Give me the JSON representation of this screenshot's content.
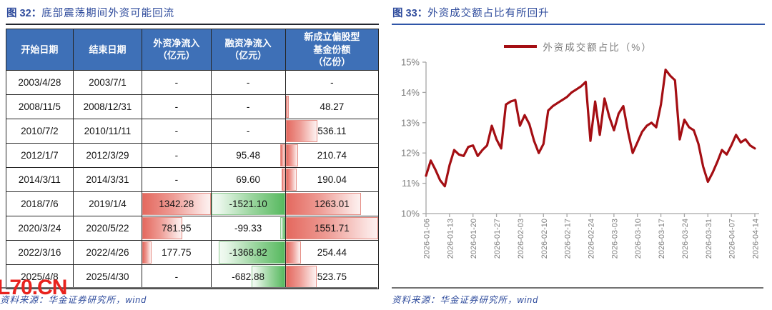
{
  "colors": {
    "accent_blue": "#2E4B9C",
    "table_header_blue": "#3E70B7",
    "line_red": "#A40E13",
    "bar_red": "#E4695F",
    "bar_green": "#57B95F",
    "watermark_red": "#E8231E",
    "axis_gray": "#7F7F7F"
  },
  "left_figure": {
    "label": "图 32：",
    "title": "底部震荡期间外资可能回流",
    "source": "资料来源：华金证券研究所，wind",
    "watermark": "L70.CN",
    "table": {
      "col_widths": [
        "18%",
        "18.5%",
        "18.5%",
        "20%",
        "25%"
      ],
      "headers": [
        "开始日期",
        "结束日期",
        "外资净流入\n（亿元）",
        "融资净流入\n（亿元）",
        "新成立偏股型\n基金份额\n（亿份）"
      ],
      "rows": [
        [
          "2003/4/28",
          "2003/7/1",
          "-",
          "-",
          "-"
        ],
        [
          "2008/11/5",
          "2008/12/31",
          "-",
          "-",
          "48.27"
        ],
        [
          "2010/7/2",
          "2010/11/11",
          "-",
          "-",
          "536.11"
        ],
        [
          "2012/1/7",
          "2012/3/29",
          "-",
          "95.48",
          "210.74"
        ],
        [
          "2014/3/11",
          "2014/3/31",
          "-",
          "69.60",
          "190.04"
        ],
        [
          "2018/7/6",
          "2019/1/4",
          "1342.28",
          "-1521.10",
          "1263.01"
        ],
        [
          "2020/3/24",
          "2020/5/22",
          "781.95",
          "-99.33",
          "1551.71"
        ],
        [
          "2022/3/16",
          "2022/4/26",
          "177.75",
          "-1368.82",
          "254.44"
        ],
        [
          "2025/4/8",
          "2025/4/30",
          "-",
          "-682.88",
          "523.75"
        ]
      ]
    }
  },
  "right_figure": {
    "label": "图 33：",
    "title": "外资成交额占比有所回升",
    "legend": "外资成交额占比（%）",
    "source": "资料来源：华金证券研究所，wind"
  },
  "chart_data": {
    "type": "line",
    "title": "外资成交额占比有所回升",
    "legend": [
      "外资成交额占比（%）"
    ],
    "legend_position": "top",
    "grid": false,
    "ylim": [
      10,
      15
    ],
    "y_tick_labels": [
      "15%",
      "14%",
      "13%",
      "12%",
      "11%",
      "10%"
    ],
    "x_tick_labels": [
      "2026-01-06",
      "2026-01-13",
      "2026-01-20",
      "2026-01-27",
      "2026-02-03",
      "2026-02-10",
      "2026-02-17",
      "2026-02-24",
      "2026-03-03",
      "2026-03-10",
      "2026-03-17",
      "2026-03-24",
      "2026-03-31",
      "2026-04-07",
      "2026-04-14"
    ],
    "x_tick_every": 5,
    "series": [
      {
        "name": "外资成交额占比（%）",
        "color": "#A40E13",
        "unit": "%",
        "values": [
          11.25,
          11.75,
          11.45,
          11.1,
          10.9,
          11.6,
          12.1,
          11.95,
          11.9,
          12.2,
          12.25,
          11.9,
          12.1,
          12.25,
          12.9,
          12.45,
          12.15,
          13.6,
          13.7,
          13.75,
          12.9,
          13.25,
          12.95,
          12.4,
          12.0,
          12.3,
          13.4,
          13.55,
          13.65,
          13.75,
          13.85,
          14.0,
          14.1,
          14.2,
          14.35,
          12.4,
          13.7,
          12.6,
          13.8,
          13.2,
          12.75,
          13.3,
          13.55,
          12.7,
          12.0,
          12.35,
          12.7,
          12.9,
          13.0,
          12.85,
          13.6,
          14.75,
          14.55,
          14.4,
          12.45,
          13.1,
          12.85,
          12.75,
          12.3,
          11.55,
          11.05,
          11.35,
          11.7,
          12.1,
          11.95,
          12.25,
          12.6,
          12.35,
          12.45,
          12.25,
          12.15
        ]
      }
    ]
  }
}
